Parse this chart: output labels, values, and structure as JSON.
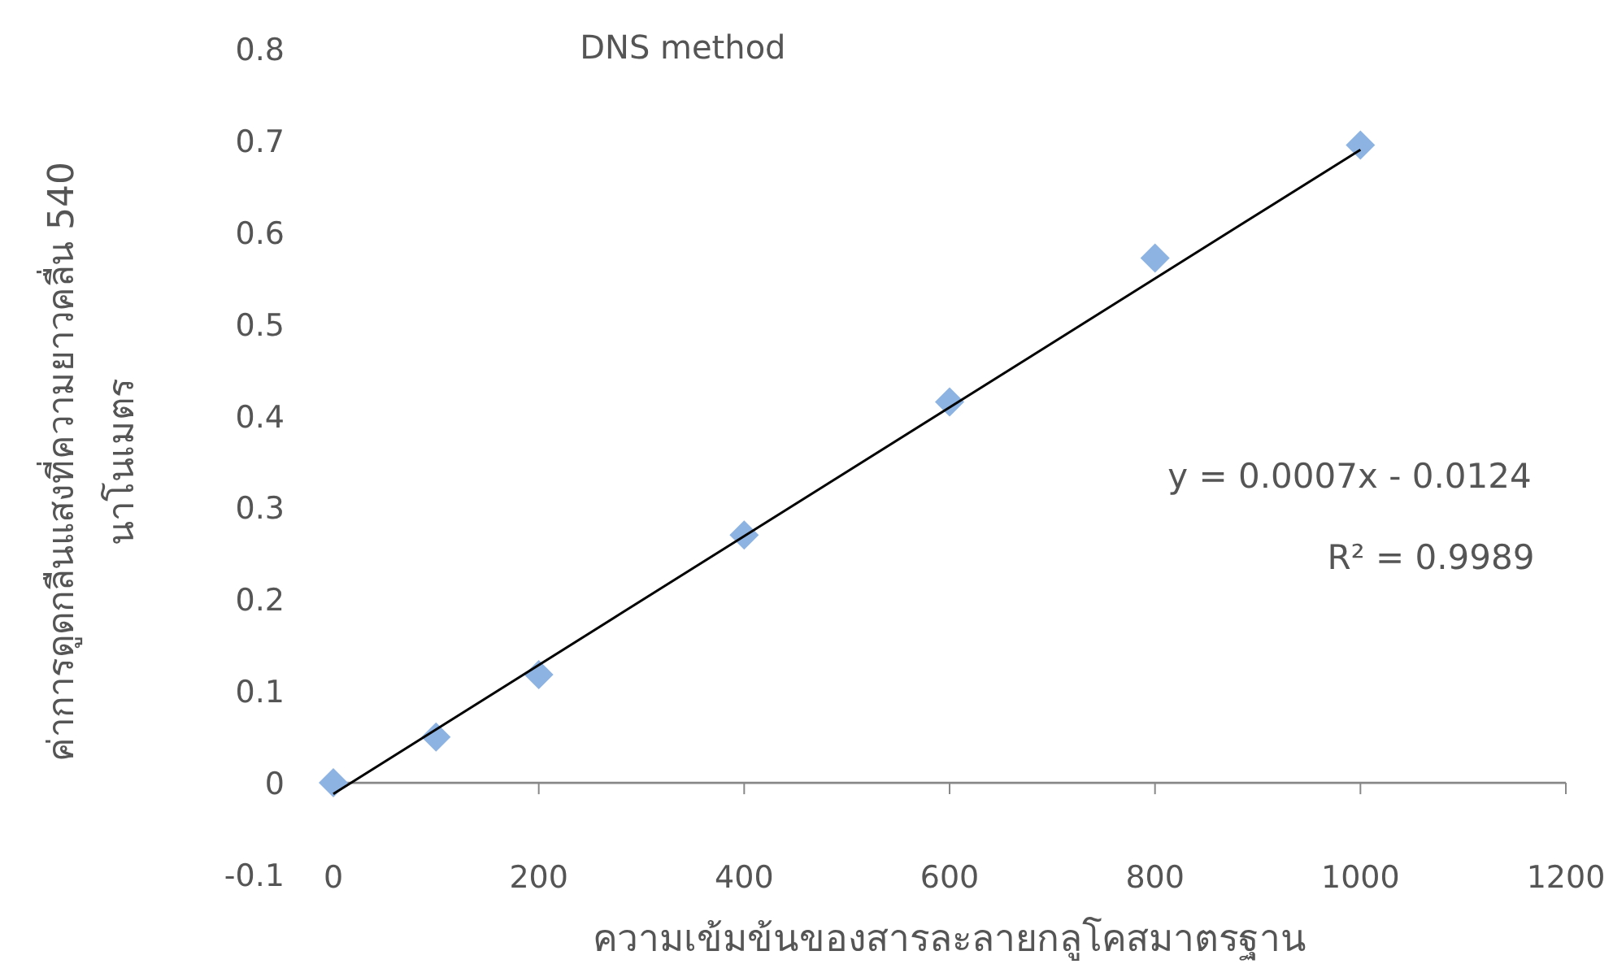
{
  "chart_data": {
    "type": "scatter",
    "title": "DNS method",
    "xlabel": "ความเข้มข้นของสารละลายกลูโคสมาตรฐาน",
    "ylabel": "ค่าการดูดกลืนแสงที่ความยาวคลื่น 540 นาโนเมตร",
    "x": [
      0,
      100,
      200,
      400,
      600,
      800,
      1000
    ],
    "series": [
      {
        "color": "#8db3e2",
        "marker": "diamond",
        "values": [
          0,
          0.05,
          0.118,
          0.27,
          0.415,
          0.572,
          0.695
        ]
      },
      {
        "type": "line",
        "color": "#000000",
        "x": [
          0,
          1000
        ],
        "values": [
          -0.012,
          0.69
        ]
      }
    ],
    "annotations": [
      "y = 0.0007x - 0.0124",
      "R² = 0.9989"
    ],
    "xlim": [
      0,
      1200
    ],
    "xticks": [
      0,
      200,
      400,
      600,
      800,
      1000,
      1200
    ],
    "ylim": [
      -0.1,
      0.8
    ],
    "yticks": [
      -0.1,
      0,
      0.1,
      0.2,
      0.3,
      0.4,
      0.5,
      0.6,
      0.7,
      0.8
    ],
    "grid": false
  }
}
